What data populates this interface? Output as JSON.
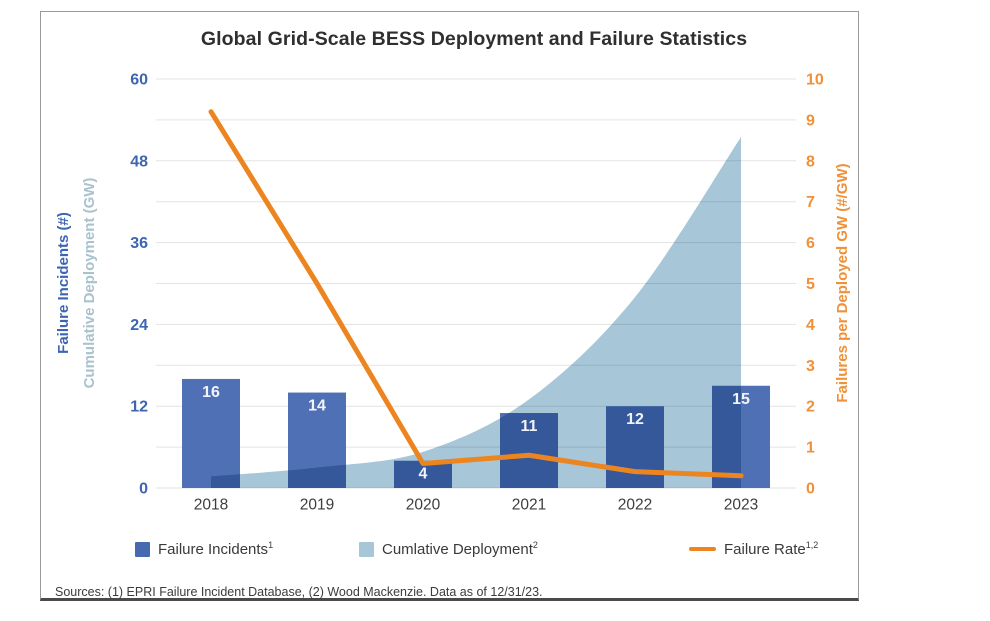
{
  "figure": {
    "title": "Global Grid-Scale BESS Deployment and Failure Statistics",
    "source_note": "Sources: (1) EPRI Failure Incident Database, (2) Wood Mackenzie. Data as of 12/31/23."
  },
  "legend": [
    {
      "label": "Failure Incidents",
      "sup": "1",
      "swatch": "bar-square",
      "color": "#4769af"
    },
    {
      "label": "Cumlative Deployment",
      "sup": "2",
      "swatch": "area-square",
      "color": "#a7c7d9"
    },
    {
      "label": "Failure Rate",
      "sup": "1,2",
      "swatch": "line-dash",
      "color": "#ec8520"
    }
  ],
  "colors": {
    "bar": "#4f70b5",
    "area": "#a7c7d9",
    "line": "#ec8520",
    "left_axis": "#3e65b2",
    "left_axis_secondary": "#a9c2ce",
    "right_axis": "#f0913a",
    "grid": "#e3e3e3",
    "x_tick": "#3d3d3d",
    "bar_label": "#f2f4f9"
  },
  "chart_data": {
    "type": "combo-bar-area-line",
    "title": "Global Grid-Scale BESS Deployment and Failure Statistics",
    "categories": [
      "2018",
      "2019",
      "2020",
      "2021",
      "2022",
      "2023"
    ],
    "series": [
      {
        "name": "Failure Incidents",
        "type": "bar",
        "axis": "left",
        "unit": "#",
        "values": [
          16,
          14,
          4,
          11,
          12,
          15
        ]
      },
      {
        "name": "Cumlative Deployment",
        "type": "area",
        "axis": "left",
        "unit": "GW",
        "values": [
          1.7,
          3,
          5.3,
          13,
          28,
          51.5
        ]
      },
      {
        "name": "Failure Rate",
        "type": "line",
        "axis": "right",
        "unit": "#/GW",
        "values": [
          9.2,
          5.0,
          0.6,
          0.8,
          0.4,
          0.3
        ]
      }
    ],
    "axes": {
      "left": {
        "titles": [
          "Failure Incidents (#)",
          "Cumulative Deployment (GW)"
        ],
        "ticks": [
          0,
          12,
          24,
          36,
          48,
          60
        ],
        "range": [
          0,
          60
        ]
      },
      "right": {
        "title": "Failures per Deployed GW (#/GW)",
        "ticks": [
          0,
          1,
          2,
          3,
          4,
          5,
          6,
          7,
          8,
          9,
          10
        ],
        "range": [
          0,
          10
        ]
      }
    },
    "grid": "horizontal",
    "legend_position": "bottom",
    "bar_value_labels": true
  }
}
